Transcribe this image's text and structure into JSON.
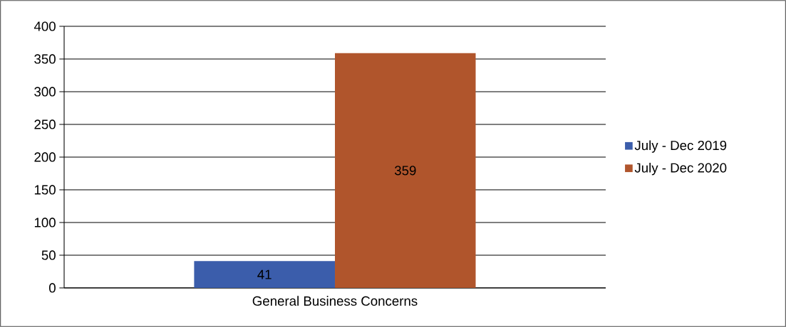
{
  "chart_data": {
    "type": "bar",
    "categories": [
      "General Business Concerns"
    ],
    "series": [
      {
        "name": "July - Dec 2019",
        "color": "#3b5dab",
        "values": [
          41
        ]
      },
      {
        "name": "July - Dec 2020",
        "color": "#b0552c",
        "values": [
          359
        ]
      }
    ],
    "ylim": [
      0,
      400
    ],
    "yticks": [
      0,
      50,
      100,
      150,
      200,
      250,
      300,
      350,
      400
    ],
    "grid": "y",
    "legend": "right",
    "data_labels": true
  }
}
